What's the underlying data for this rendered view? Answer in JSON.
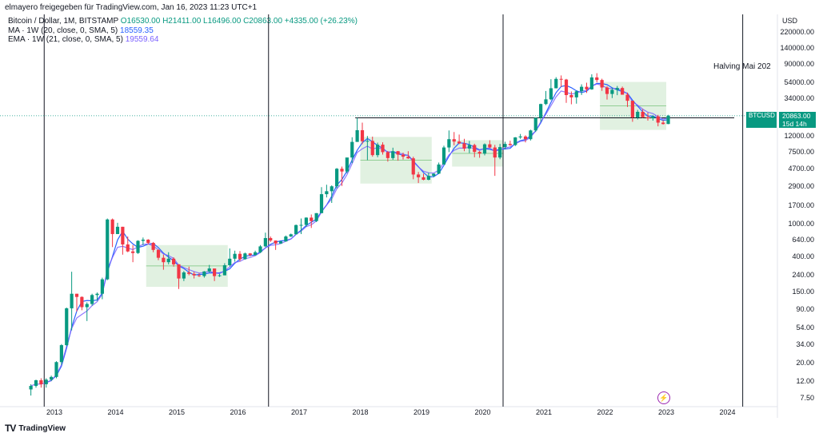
{
  "attribution": "elmayero freigegeben für TradingView.com, Jan 16, 2023 11:23 UTC+1",
  "legend": {
    "symbol": "Bitcoin / Dollar, 1M, BITSTAMP",
    "ohlc": "O16530.00 H21411.00 L16496.00 C20863.00 +4335.00 (+26.23%)",
    "ma_name": "MA · 1W (20, close, 0, SMA, 5)",
    "ma_value": "18559.35",
    "ema_name": "EMA · 1W (21, close, 0, SMA, 5)",
    "ema_value": "19559.64"
  },
  "annotation": "Halving Mai 202",
  "badge": {
    "symbol": "BTCUSD",
    "price": "20863.00",
    "countdown": "15d 14h"
  },
  "footer": {
    "brand": "TradingView",
    "logo": "tv-logo"
  },
  "colors": {
    "up": "#089981",
    "down": "#f23645",
    "ma": "#2962ff",
    "ema": "#7b61ff",
    "box": "#c8e6c9"
  },
  "chart_data": {
    "type": "candlestick",
    "scale": "log",
    "y_unit": "USD",
    "y_ticks": [
      "220000.00",
      "140000.00",
      "90000.00",
      "54000.00",
      "34000.00",
      "20863.00",
      "12000.00",
      "7500.00",
      "4700.00",
      "2900.00",
      "1700.00",
      "1000.00",
      "640.00",
      "400.00",
      "240.00",
      "150.00",
      "90.00",
      "54.00",
      "34.00",
      "20.00",
      "12.00",
      "7.50"
    ],
    "x_ticks": [
      "2013",
      "2014",
      "2015",
      "2016",
      "2017",
      "2018",
      "2019",
      "2020",
      "2021",
      "2022",
      "2023",
      "2024"
    ],
    "series": [
      {
        "date": "2012-08",
        "o": 9.5,
        "h": 11,
        "l": 8,
        "c": 10.5
      },
      {
        "date": "2012-09",
        "o": 10.5,
        "h": 12.5,
        "l": 10,
        "c": 12.3
      },
      {
        "date": "2012-10",
        "o": 12.3,
        "h": 13,
        "l": 10,
        "c": 11
      },
      {
        "date": "2012-11",
        "o": 11,
        "h": 13,
        "l": 10,
        "c": 12.5
      },
      {
        "date": "2012-12",
        "o": 12.5,
        "h": 14,
        "l": 12,
        "c": 13.5
      },
      {
        "date": "2013-01",
        "o": 13.5,
        "h": 21,
        "l": 13,
        "c": 20.5
      },
      {
        "date": "2013-02",
        "o": 20.5,
        "h": 34,
        "l": 19,
        "c": 33
      },
      {
        "date": "2013-03",
        "o": 33,
        "h": 95,
        "l": 32,
        "c": 93
      },
      {
        "date": "2013-04",
        "o": 93,
        "h": 260,
        "l": 50,
        "c": 140
      },
      {
        "date": "2013-05",
        "o": 140,
        "h": 140,
        "l": 85,
        "c": 128
      },
      {
        "date": "2013-06",
        "o": 128,
        "h": 130,
        "l": 88,
        "c": 96
      },
      {
        "date": "2013-07",
        "o": 96,
        "h": 110,
        "l": 65,
        "c": 105
      },
      {
        "date": "2013-08",
        "o": 105,
        "h": 140,
        "l": 100,
        "c": 135
      },
      {
        "date": "2013-09",
        "o": 135,
        "h": 145,
        "l": 115,
        "c": 140
      },
      {
        "date": "2013-10",
        "o": 140,
        "h": 220,
        "l": 120,
        "c": 210
      },
      {
        "date": "2013-11",
        "o": 210,
        "h": 1160,
        "l": 205,
        "c": 1130
      },
      {
        "date": "2013-12",
        "o": 1130,
        "h": 1160,
        "l": 520,
        "c": 750
      },
      {
        "date": "2014-01",
        "o": 750,
        "h": 1030,
        "l": 750,
        "c": 920
      },
      {
        "date": "2014-02",
        "o": 920,
        "h": 920,
        "l": 420,
        "c": 560
      },
      {
        "date": "2014-03",
        "o": 560,
        "h": 700,
        "l": 450,
        "c": 460
      },
      {
        "date": "2014-04",
        "o": 460,
        "h": 550,
        "l": 340,
        "c": 440
      },
      {
        "date": "2014-05",
        "o": 440,
        "h": 630,
        "l": 430,
        "c": 620
      },
      {
        "date": "2014-06",
        "o": 620,
        "h": 680,
        "l": 550,
        "c": 640
      },
      {
        "date": "2014-07",
        "o": 640,
        "h": 650,
        "l": 560,
        "c": 585
      },
      {
        "date": "2014-08",
        "o": 585,
        "h": 600,
        "l": 450,
        "c": 480
      },
      {
        "date": "2014-09",
        "o": 480,
        "h": 490,
        "l": 360,
        "c": 385
      },
      {
        "date": "2014-10",
        "o": 385,
        "h": 420,
        "l": 275,
        "c": 340
      },
      {
        "date": "2014-11",
        "o": 340,
        "h": 450,
        "l": 320,
        "c": 375
      },
      {
        "date": "2014-12",
        "o": 375,
        "h": 390,
        "l": 300,
        "c": 320
      },
      {
        "date": "2015-01",
        "o": 320,
        "h": 320,
        "l": 160,
        "c": 215
      },
      {
        "date": "2015-02",
        "o": 215,
        "h": 265,
        "l": 200,
        "c": 255
      },
      {
        "date": "2015-03",
        "o": 255,
        "h": 300,
        "l": 235,
        "c": 245
      },
      {
        "date": "2015-04",
        "o": 245,
        "h": 260,
        "l": 215,
        "c": 235
      },
      {
        "date": "2015-05",
        "o": 235,
        "h": 250,
        "l": 225,
        "c": 230
      },
      {
        "date": "2015-06",
        "o": 230,
        "h": 265,
        "l": 220,
        "c": 262
      },
      {
        "date": "2015-07",
        "o": 262,
        "h": 315,
        "l": 255,
        "c": 285
      },
      {
        "date": "2015-08",
        "o": 285,
        "h": 285,
        "l": 200,
        "c": 230
      },
      {
        "date": "2015-09",
        "o": 230,
        "h": 245,
        "l": 225,
        "c": 235
      },
      {
        "date": "2015-10",
        "o": 235,
        "h": 330,
        "l": 235,
        "c": 312
      },
      {
        "date": "2015-11",
        "o": 312,
        "h": 500,
        "l": 300,
        "c": 375
      },
      {
        "date": "2015-12",
        "o": 375,
        "h": 470,
        "l": 345,
        "c": 430
      },
      {
        "date": "2016-01",
        "o": 430,
        "h": 465,
        "l": 350,
        "c": 370
      },
      {
        "date": "2016-02",
        "o": 370,
        "h": 445,
        "l": 365,
        "c": 435
      },
      {
        "date": "2016-03",
        "o": 435,
        "h": 440,
        "l": 400,
        "c": 415
      },
      {
        "date": "2016-04",
        "o": 415,
        "h": 470,
        "l": 410,
        "c": 450
      },
      {
        "date": "2016-05",
        "o": 450,
        "h": 550,
        "l": 440,
        "c": 530
      },
      {
        "date": "2016-06",
        "o": 530,
        "h": 780,
        "l": 520,
        "c": 670
      },
      {
        "date": "2016-07",
        "o": 670,
        "h": 700,
        "l": 600,
        "c": 625
      },
      {
        "date": "2016-08",
        "o": 625,
        "h": 625,
        "l": 480,
        "c": 575
      },
      {
        "date": "2016-09",
        "o": 575,
        "h": 615,
        "l": 570,
        "c": 610
      },
      {
        "date": "2016-10",
        "o": 610,
        "h": 720,
        "l": 605,
        "c": 700
      },
      {
        "date": "2016-11",
        "o": 700,
        "h": 760,
        "l": 690,
        "c": 745
      },
      {
        "date": "2016-12",
        "o": 745,
        "h": 980,
        "l": 745,
        "c": 965
      },
      {
        "date": "2017-01",
        "o": 965,
        "h": 1160,
        "l": 750,
        "c": 970
      },
      {
        "date": "2017-02",
        "o": 970,
        "h": 1200,
        "l": 920,
        "c": 1190
      },
      {
        "date": "2017-03",
        "o": 1190,
        "h": 1300,
        "l": 890,
        "c": 1080
      },
      {
        "date": "2017-04",
        "o": 1080,
        "h": 1350,
        "l": 1050,
        "c": 1350
      },
      {
        "date": "2017-05",
        "o": 1350,
        "h": 2800,
        "l": 1350,
        "c": 2300
      },
      {
        "date": "2017-06",
        "o": 2300,
        "h": 3000,
        "l": 2100,
        "c": 2500
      },
      {
        "date": "2017-07",
        "o": 2500,
        "h": 2950,
        "l": 1800,
        "c": 2870
      },
      {
        "date": "2017-08",
        "o": 2870,
        "h": 4800,
        "l": 2700,
        "c": 4700
      },
      {
        "date": "2017-09",
        "o": 4700,
        "h": 5000,
        "l": 2900,
        "c": 4350
      },
      {
        "date": "2017-10",
        "o": 4350,
        "h": 6400,
        "l": 4150,
        "c": 6450
      },
      {
        "date": "2017-11",
        "o": 6450,
        "h": 11400,
        "l": 5500,
        "c": 10000
      },
      {
        "date": "2017-12",
        "o": 10000,
        "h": 19700,
        "l": 10000,
        "c": 13900
      },
      {
        "date": "2018-01",
        "o": 13900,
        "h": 17200,
        "l": 9400,
        "c": 10200
      },
      {
        "date": "2018-02",
        "o": 10200,
        "h": 11800,
        "l": 6000,
        "c": 10300
      },
      {
        "date": "2018-03",
        "o": 10300,
        "h": 11600,
        "l": 6600,
        "c": 6900
      },
      {
        "date": "2018-04",
        "o": 6900,
        "h": 9800,
        "l": 6500,
        "c": 9250
      },
      {
        "date": "2018-05",
        "o": 9250,
        "h": 9900,
        "l": 7000,
        "c": 7500
      },
      {
        "date": "2018-06",
        "o": 7500,
        "h": 7750,
        "l": 5750,
        "c": 6350
      },
      {
        "date": "2018-07",
        "o": 6350,
        "h": 8500,
        "l": 6050,
        "c": 7700
      },
      {
        "date": "2018-08",
        "o": 7700,
        "h": 7750,
        "l": 5900,
        "c": 7000
      },
      {
        "date": "2018-09",
        "o": 7000,
        "h": 7400,
        "l": 6100,
        "c": 6600
      },
      {
        "date": "2018-10",
        "o": 6600,
        "h": 7700,
        "l": 6200,
        "c": 6300
      },
      {
        "date": "2018-11",
        "o": 6300,
        "h": 6600,
        "l": 3500,
        "c": 4000
      },
      {
        "date": "2018-12",
        "o": 4000,
        "h": 4300,
        "l": 3150,
        "c": 3700
      },
      {
        "date": "2019-01",
        "o": 3700,
        "h": 4100,
        "l": 3400,
        "c": 3450
      },
      {
        "date": "2019-02",
        "o": 3450,
        "h": 4200,
        "l": 3400,
        "c": 3850
      },
      {
        "date": "2019-03",
        "o": 3850,
        "h": 4100,
        "l": 3700,
        "c": 4100
      },
      {
        "date": "2019-04",
        "o": 4100,
        "h": 5600,
        "l": 4050,
        "c": 5300
      },
      {
        "date": "2019-05",
        "o": 5300,
        "h": 9000,
        "l": 5300,
        "c": 8550
      },
      {
        "date": "2019-06",
        "o": 8550,
        "h": 13800,
        "l": 7500,
        "c": 10800
      },
      {
        "date": "2019-07",
        "o": 10800,
        "h": 13200,
        "l": 9100,
        "c": 10100
      },
      {
        "date": "2019-08",
        "o": 10100,
        "h": 12300,
        "l": 9400,
        "c": 9600
      },
      {
        "date": "2019-09",
        "o": 9600,
        "h": 10900,
        "l": 7700,
        "c": 8300
      },
      {
        "date": "2019-10",
        "o": 8300,
        "h": 10300,
        "l": 7300,
        "c": 9150
      },
      {
        "date": "2019-11",
        "o": 9150,
        "h": 9500,
        "l": 6500,
        "c": 7550
      },
      {
        "date": "2019-12",
        "o": 7550,
        "h": 7750,
        "l": 6400,
        "c": 7200
      },
      {
        "date": "2020-01",
        "o": 7200,
        "h": 9600,
        "l": 6850,
        "c": 9350
      },
      {
        "date": "2020-02",
        "o": 9350,
        "h": 10500,
        "l": 8400,
        "c": 8550
      },
      {
        "date": "2020-03",
        "o": 8550,
        "h": 9200,
        "l": 3850,
        "c": 6450
      },
      {
        "date": "2020-04",
        "o": 6450,
        "h": 9450,
        "l": 6150,
        "c": 8650
      },
      {
        "date": "2020-05",
        "o": 8650,
        "h": 10050,
        "l": 8100,
        "c": 9450
      },
      {
        "date": "2020-06",
        "o": 9450,
        "h": 10350,
        "l": 8950,
        "c": 9150
      },
      {
        "date": "2020-07",
        "o": 9150,
        "h": 11450,
        "l": 8900,
        "c": 11350
      },
      {
        "date": "2020-08",
        "o": 11350,
        "h": 12500,
        "l": 10900,
        "c": 11650
      },
      {
        "date": "2020-09",
        "o": 11650,
        "h": 12050,
        "l": 9850,
        "c": 10800
      },
      {
        "date": "2020-10",
        "o": 10800,
        "h": 14100,
        "l": 10400,
        "c": 13800
      },
      {
        "date": "2020-11",
        "o": 13800,
        "h": 19900,
        "l": 13200,
        "c": 19700
      },
      {
        "date": "2020-12",
        "o": 19700,
        "h": 29300,
        "l": 17600,
        "c": 29000
      },
      {
        "date": "2021-01",
        "o": 29000,
        "h": 41900,
        "l": 28200,
        "c": 33100
      },
      {
        "date": "2021-02",
        "o": 33100,
        "h": 58300,
        "l": 32300,
        "c": 45200
      },
      {
        "date": "2021-03",
        "o": 45200,
        "h": 61700,
        "l": 45000,
        "c": 58800
      },
      {
        "date": "2021-04",
        "o": 58800,
        "h": 64800,
        "l": 47000,
        "c": 57700
      },
      {
        "date": "2021-05",
        "o": 57700,
        "h": 58800,
        "l": 30000,
        "c": 37300
      },
      {
        "date": "2021-06",
        "o": 37300,
        "h": 41300,
        "l": 28800,
        "c": 35000
      },
      {
        "date": "2021-07",
        "o": 35000,
        "h": 42300,
        "l": 29300,
        "c": 41500
      },
      {
        "date": "2021-08",
        "o": 41500,
        "h": 50500,
        "l": 37400,
        "c": 47100
      },
      {
        "date": "2021-09",
        "o": 47100,
        "h": 52900,
        "l": 39600,
        "c": 43800
      },
      {
        "date": "2021-10",
        "o": 43800,
        "h": 66900,
        "l": 43300,
        "c": 61300
      },
      {
        "date": "2021-11",
        "o": 61300,
        "h": 69000,
        "l": 53300,
        "c": 57000
      },
      {
        "date": "2021-12",
        "o": 57000,
        "h": 59100,
        "l": 42000,
        "c": 46200
      },
      {
        "date": "2022-01",
        "o": 46200,
        "h": 47900,
        "l": 32900,
        "c": 38500
      },
      {
        "date": "2022-02",
        "o": 38500,
        "h": 45800,
        "l": 34300,
        "c": 43200
      },
      {
        "date": "2022-03",
        "o": 43200,
        "h": 48200,
        "l": 37200,
        "c": 45500
      },
      {
        "date": "2022-04",
        "o": 45500,
        "h": 47400,
        "l": 37700,
        "c": 37700
      },
      {
        "date": "2022-05",
        "o": 37700,
        "h": 40000,
        "l": 26700,
        "c": 31800
      },
      {
        "date": "2022-06",
        "o": 31800,
        "h": 31900,
        "l": 17600,
        "c": 19900
      },
      {
        "date": "2022-07",
        "o": 19900,
        "h": 24600,
        "l": 18800,
        "c": 23300
      },
      {
        "date": "2022-08",
        "o": 23300,
        "h": 25200,
        "l": 19600,
        "c": 20000
      },
      {
        "date": "2022-09",
        "o": 20000,
        "h": 22700,
        "l": 18200,
        "c": 19400
      },
      {
        "date": "2022-10",
        "o": 19400,
        "h": 21100,
        "l": 18200,
        "c": 20500
      },
      {
        "date": "2022-11",
        "o": 20500,
        "h": 21400,
        "l": 15500,
        "c": 17200
      },
      {
        "date": "2022-12",
        "o": 17200,
        "h": 18400,
        "l": 16300,
        "c": 16530
      },
      {
        "date": "2023-01",
        "o": 16530,
        "h": 21411,
        "l": 16496,
        "c": 20863
      }
    ]
  }
}
